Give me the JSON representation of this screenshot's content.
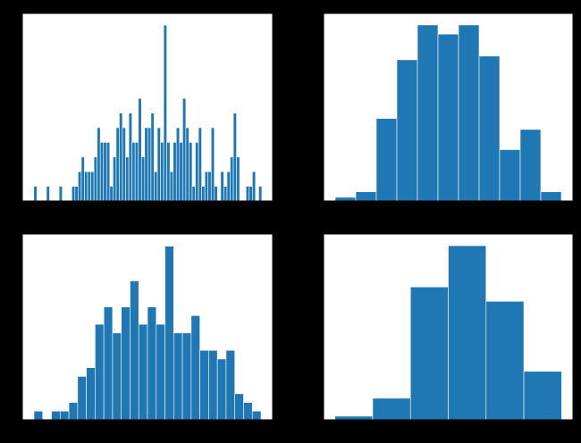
{
  "chart_data": [
    {
      "type": "histogram",
      "color": "#1f77b4",
      "xlim": [
        -3.6,
        75.4
      ],
      "ylim": [
        0,
        12.8
      ],
      "bins": [
        0,
        1,
        2,
        3,
        4,
        5,
        6,
        7,
        8,
        9,
        10,
        11,
        12,
        13,
        14,
        15,
        16,
        17,
        18,
        19,
        20,
        21,
        22,
        23,
        24,
        25,
        26,
        27,
        28,
        29,
        30,
        31,
        32,
        33,
        34,
        35,
        36,
        37,
        38,
        39,
        40,
        41,
        42,
        43,
        44,
        45,
        46,
        47,
        48,
        49,
        50,
        51,
        52,
        53,
        54,
        55,
        56,
        57,
        58,
        59,
        60,
        61,
        62,
        63,
        64,
        65,
        66,
        67,
        68,
        69,
        70,
        71,
        72
      ],
      "values": [
        1,
        0,
        0,
        0,
        1,
        0,
        0,
        0,
        1,
        0,
        0,
        0,
        1,
        1,
        2,
        3,
        2,
        2,
        2,
        3,
        5,
        4,
        4,
        4,
        1,
        3,
        5,
        6,
        5,
        3,
        6,
        4,
        4,
        7,
        3,
        5,
        5,
        6,
        2,
        5,
        4,
        12,
        4,
        2,
        4,
        5,
        4,
        7,
        5,
        4,
        1,
        4,
        5,
        1,
        2,
        2,
        5,
        1,
        0,
        2,
        1,
        2,
        3,
        6,
        3,
        0,
        0,
        1,
        1,
        2,
        0,
        1
      ]
    },
    {
      "type": "histogram",
      "color": "#1f77b4",
      "xlim": [
        -0.565,
        11.565
      ],
      "ylim": [
        0,
        102.3
      ],
      "bins": [
        0,
        1,
        2,
        3,
        4,
        5,
        6,
        7,
        8,
        9,
        10,
        11
      ],
      "values": [
        2,
        5,
        45,
        77,
        96,
        91,
        96,
        79,
        28,
        39,
        5
      ]
    },
    {
      "type": "histogram",
      "color": "#1f77b4",
      "xlim": [
        -1.33,
        27.33
      ],
      "ylim": [
        0,
        21.4
      ],
      "bins": [
        0,
        1,
        2,
        3,
        4,
        5,
        6,
        7,
        8,
        9,
        10,
        11,
        12,
        13,
        14,
        15,
        16,
        17,
        18,
        19,
        20,
        21,
        22,
        23,
        24,
        25,
        26
      ],
      "values": [
        1,
        0,
        1,
        1,
        2,
        5,
        6,
        11,
        13,
        10,
        13,
        16,
        11,
        13,
        11,
        20,
        10,
        10,
        12,
        8,
        8,
        7,
        8,
        3,
        2,
        1
      ]
    },
    {
      "type": "histogram",
      "color": "#1f77b4",
      "xlim": [
        -0.3,
        6.3
      ],
      "ylim": [
        0,
        103.5
      ],
      "bins": [
        0,
        1,
        2,
        3,
        4,
        5,
        6
      ],
      "values": [
        2,
        12,
        74,
        97,
        66,
        27
      ]
    }
  ]
}
